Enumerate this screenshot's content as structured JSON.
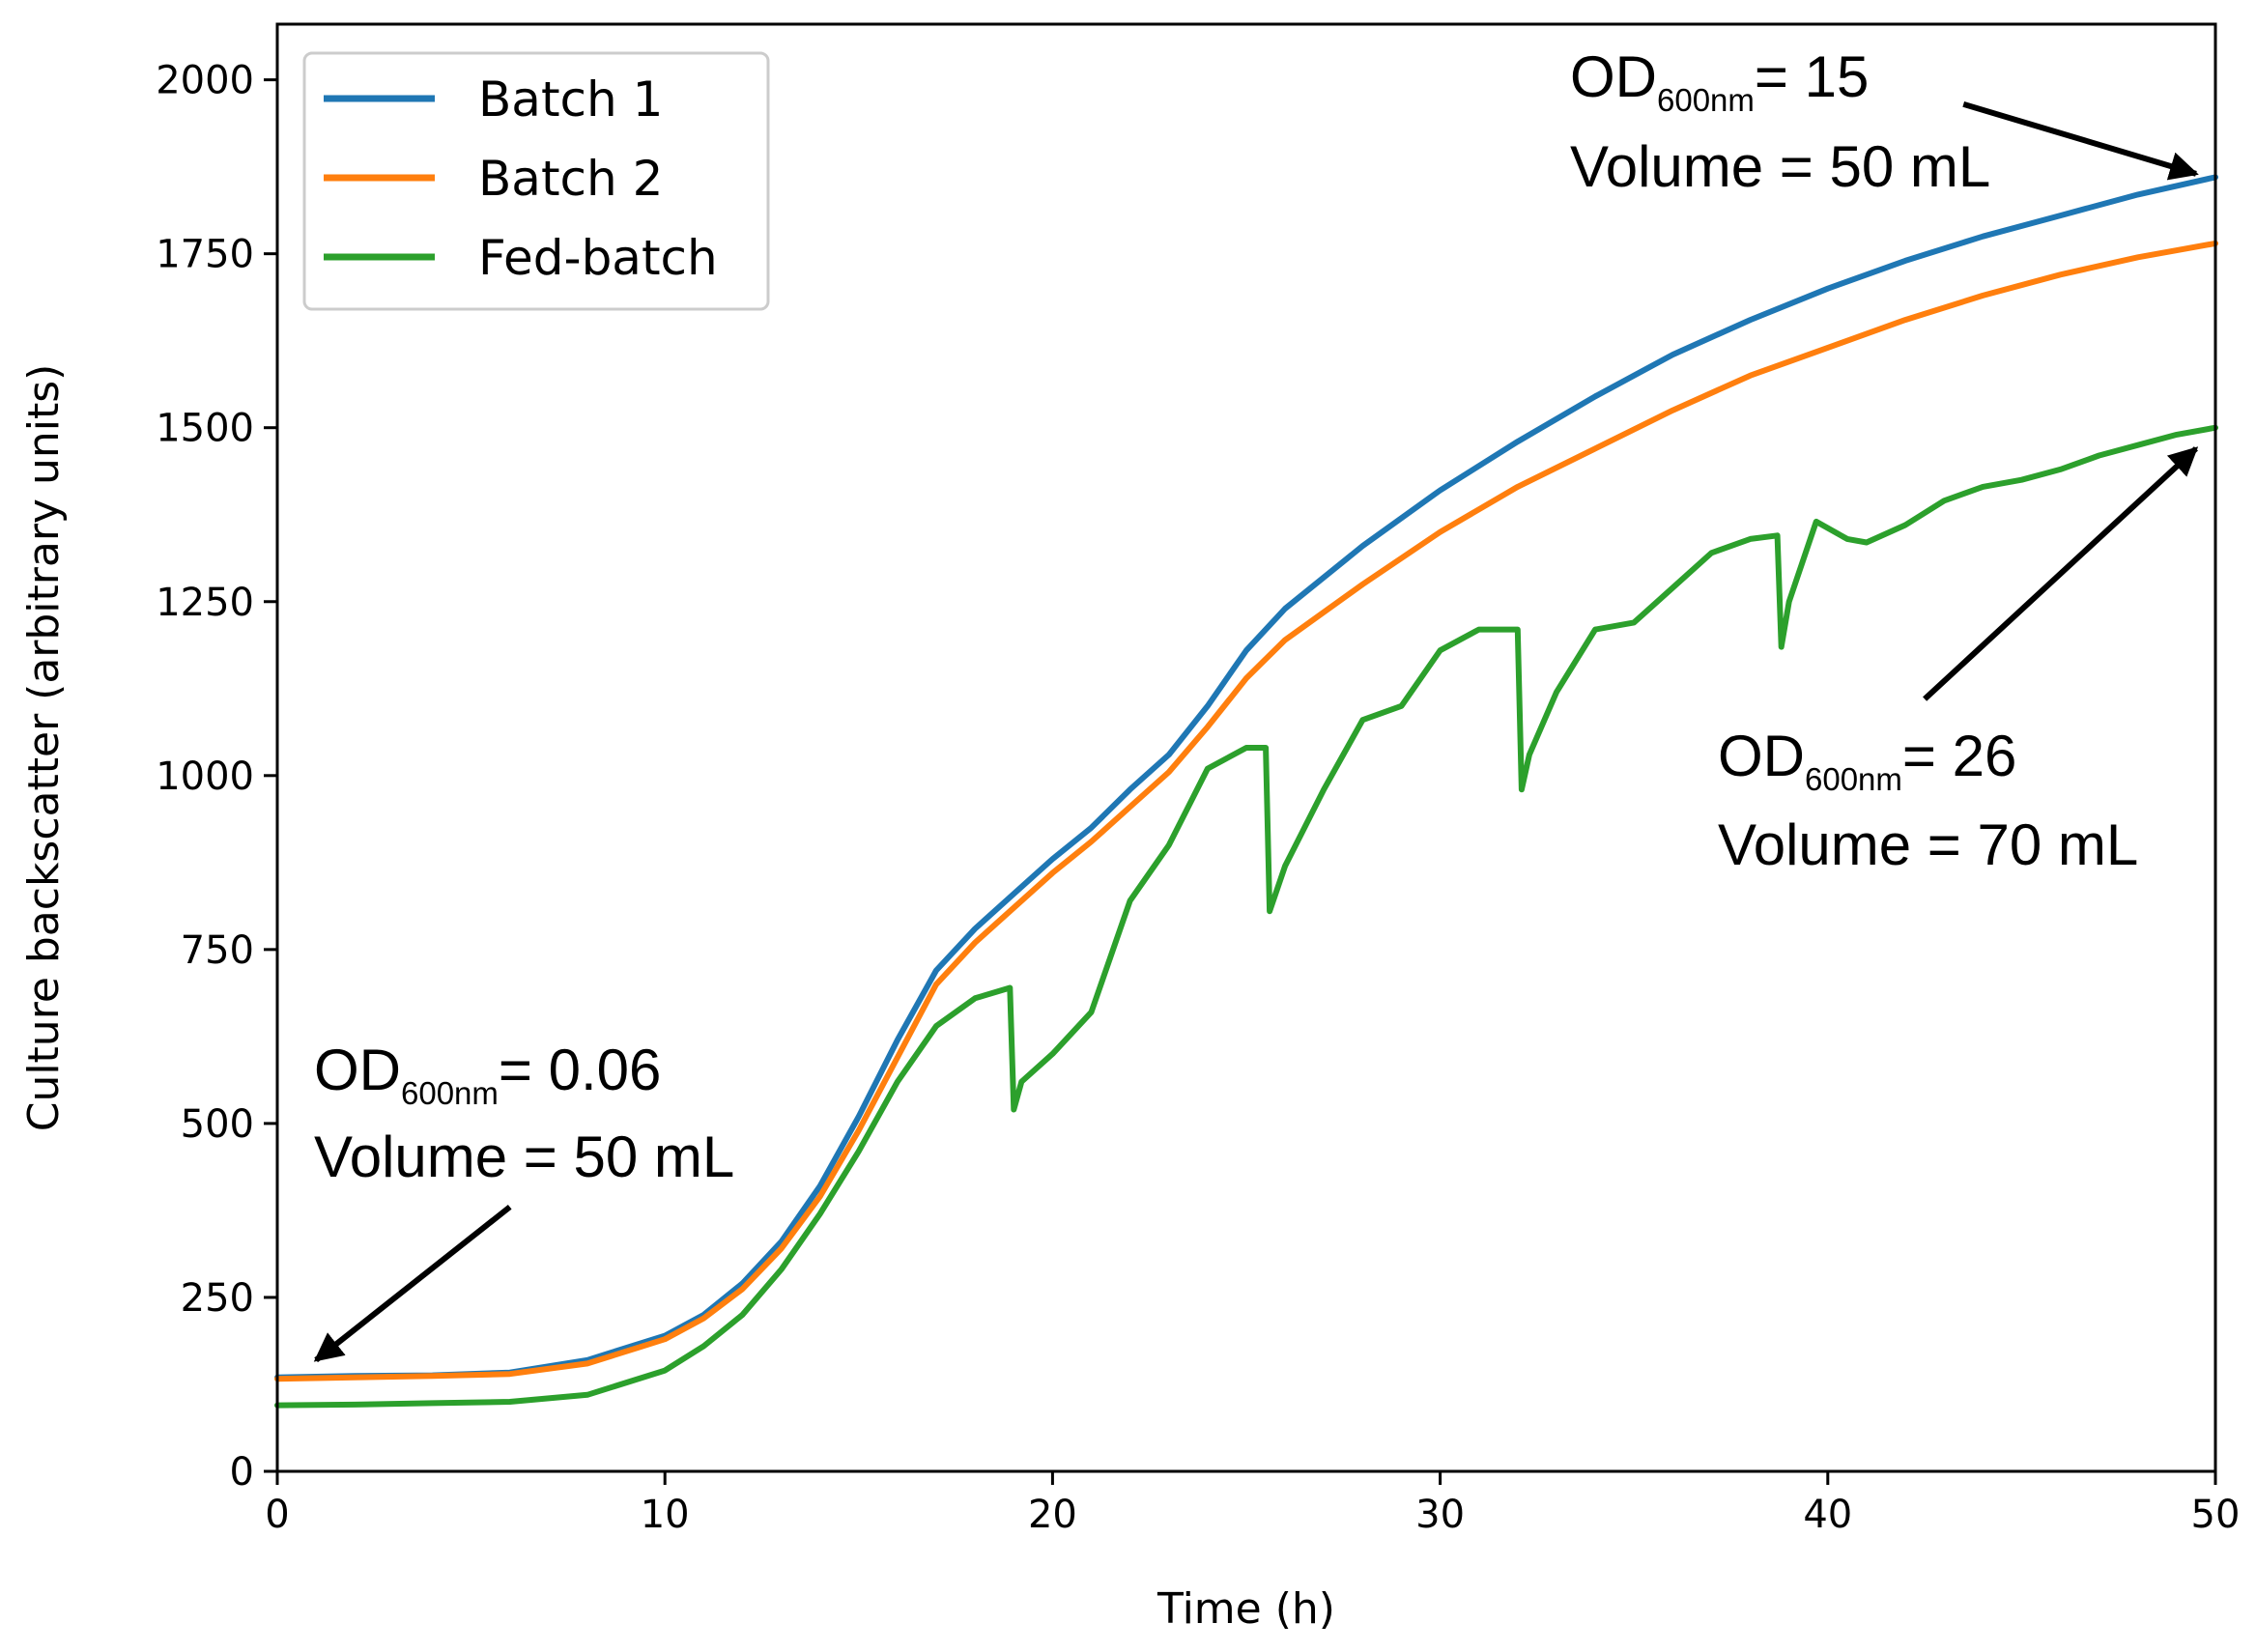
{
  "chart_data": {
    "type": "line",
    "xlabel": "Time (h)",
    "ylabel": "Culture backscatter (arbitrary units)",
    "xlim": [
      0,
      50
    ],
    "ylim": [
      0,
      2080
    ],
    "x_ticks": [
      "0",
      "10",
      "20",
      "30",
      "40",
      "50"
    ],
    "y_ticks": [
      "0",
      "250",
      "500",
      "750",
      "1000",
      "1250",
      "1500",
      "1750",
      "2000"
    ],
    "grid": false,
    "legend_position": "top-left",
    "series": [
      {
        "name": "Batch 1",
        "color": "#1f77b4",
        "points": [
          [
            0,
            135
          ],
          [
            2,
            137
          ],
          [
            4,
            138
          ],
          [
            6,
            142
          ],
          [
            8,
            160
          ],
          [
            10,
            195
          ],
          [
            11,
            225
          ],
          [
            12,
            270
          ],
          [
            13,
            330
          ],
          [
            14,
            410
          ],
          [
            15,
            510
          ],
          [
            16,
            620
          ],
          [
            17,
            720
          ],
          [
            18,
            780
          ],
          [
            19,
            830
          ],
          [
            20,
            880
          ],
          [
            21,
            925
          ],
          [
            22,
            980
          ],
          [
            23,
            1030
          ],
          [
            24,
            1100
          ],
          [
            25,
            1180
          ],
          [
            26,
            1240
          ],
          [
            28,
            1330
          ],
          [
            30,
            1410
          ],
          [
            32,
            1480
          ],
          [
            34,
            1545
          ],
          [
            36,
            1605
          ],
          [
            38,
            1655
          ],
          [
            40,
            1700
          ],
          [
            42,
            1740
          ],
          [
            44,
            1775
          ],
          [
            46,
            1805
          ],
          [
            48,
            1835
          ],
          [
            50,
            1860
          ]
        ]
      },
      {
        "name": "Batch 2",
        "color": "#ff7f0e",
        "points": [
          [
            0,
            133
          ],
          [
            2,
            135
          ],
          [
            4,
            137
          ],
          [
            6,
            140
          ],
          [
            8,
            155
          ],
          [
            10,
            190
          ],
          [
            11,
            220
          ],
          [
            12,
            262
          ],
          [
            13,
            320
          ],
          [
            14,
            395
          ],
          [
            15,
            490
          ],
          [
            16,
            595
          ],
          [
            17,
            700
          ],
          [
            18,
            760
          ],
          [
            19,
            810
          ],
          [
            20,
            860
          ],
          [
            21,
            905
          ],
          [
            22,
            955
          ],
          [
            23,
            1005
          ],
          [
            24,
            1070
          ],
          [
            25,
            1140
          ],
          [
            26,
            1195
          ],
          [
            28,
            1275
          ],
          [
            30,
            1350
          ],
          [
            32,
            1415
          ],
          [
            34,
            1470
          ],
          [
            36,
            1525
          ],
          [
            38,
            1575
          ],
          [
            40,
            1615
          ],
          [
            42,
            1655
          ],
          [
            44,
            1690
          ],
          [
            46,
            1720
          ],
          [
            48,
            1745
          ],
          [
            50,
            1765
          ]
        ]
      },
      {
        "name": "Fed-batch",
        "color": "#2ca02c",
        "points": [
          [
            0,
            95
          ],
          [
            2,
            96
          ],
          [
            4,
            98
          ],
          [
            6,
            100
          ],
          [
            8,
            110
          ],
          [
            10,
            145
          ],
          [
            11,
            180
          ],
          [
            12,
            225
          ],
          [
            13,
            290
          ],
          [
            14,
            370
          ],
          [
            15,
            460
          ],
          [
            16,
            560
          ],
          [
            17,
            640
          ],
          [
            18,
            680
          ],
          [
            18.9,
            695
          ],
          [
            19.0,
            520
          ],
          [
            19.2,
            560
          ],
          [
            20,
            600
          ],
          [
            21,
            660
          ],
          [
            22,
            820
          ],
          [
            23,
            900
          ],
          [
            24,
            1010
          ],
          [
            25,
            1040
          ],
          [
            25.5,
            1040
          ],
          [
            25.6,
            805
          ],
          [
            26,
            870
          ],
          [
            27,
            980
          ],
          [
            28,
            1080
          ],
          [
            29,
            1100
          ],
          [
            30,
            1180
          ],
          [
            31,
            1210
          ],
          [
            32,
            1210
          ],
          [
            32.1,
            980
          ],
          [
            32.3,
            1030
          ],
          [
            33,
            1120
          ],
          [
            34,
            1210
          ],
          [
            35,
            1220
          ],
          [
            36,
            1270
          ],
          [
            37,
            1320
          ],
          [
            38,
            1340
          ],
          [
            38.7,
            1345
          ],
          [
            38.8,
            1185
          ],
          [
            39,
            1250
          ],
          [
            39.7,
            1365
          ],
          [
            40.5,
            1340
          ],
          [
            41,
            1335
          ],
          [
            42,
            1360
          ],
          [
            43,
            1395
          ],
          [
            44,
            1415
          ],
          [
            45,
            1425
          ],
          [
            46,
            1440
          ],
          [
            47,
            1460
          ],
          [
            48,
            1475
          ],
          [
            49,
            1490
          ],
          [
            50,
            1500
          ]
        ]
      }
    ],
    "annotations": [
      {
        "od_main": "OD",
        "od_sub": "600nm",
        "od_value": "= 0.06",
        "volume": "Volume = 50 mL",
        "arrow_to": [
          1,
          160
        ],
        "arrow_from": [
          6,
          380
        ]
      },
      {
        "od_main": "OD",
        "od_sub": "600nm",
        "od_value": "= 15",
        "volume": "Volume = 50 mL",
        "arrow_to": [
          49.5,
          1865
        ],
        "arrow_from": [
          43.5,
          1965
        ]
      },
      {
        "od_main": "OD",
        "od_sub": "600nm",
        "od_value": "= 26",
        "volume": "Volume = 70 mL",
        "arrow_to": [
          49.5,
          1470
        ],
        "arrow_from": [
          42.5,
          1110
        ]
      }
    ]
  }
}
